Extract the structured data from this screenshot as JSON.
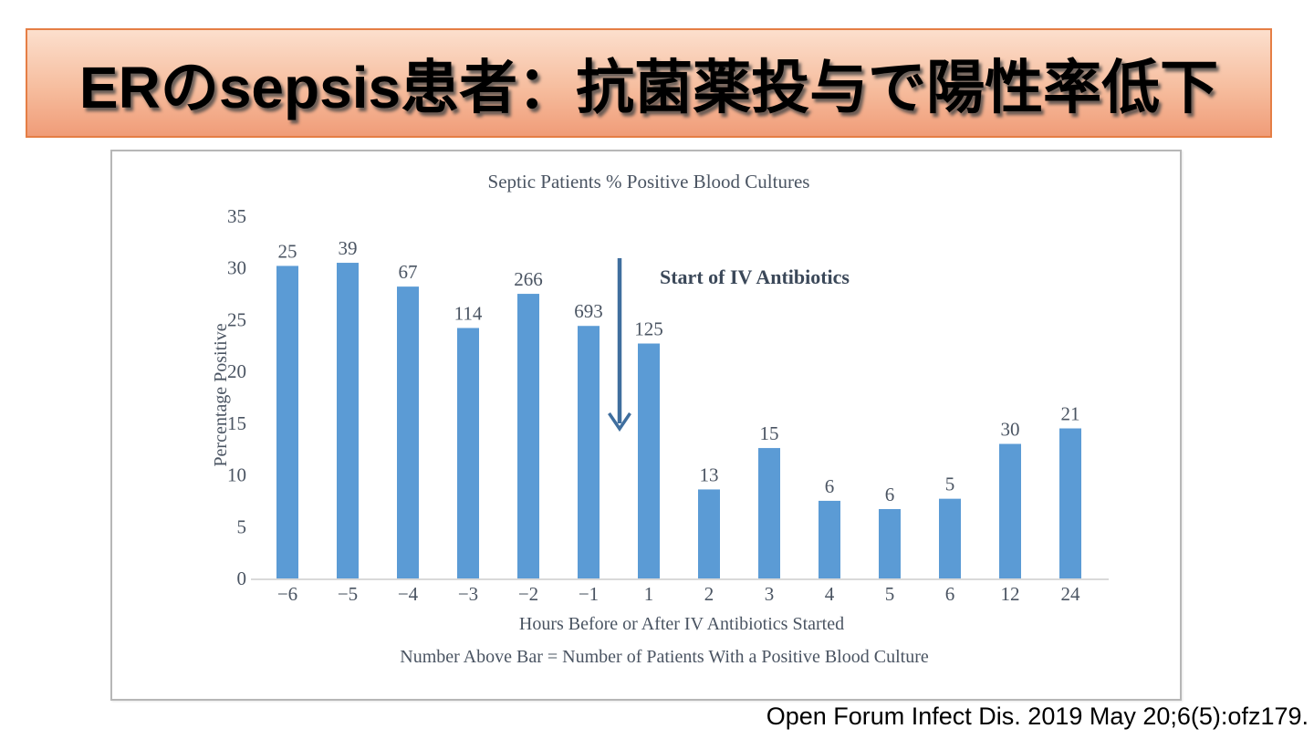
{
  "slide": {
    "title": "ERのsepsis患者：抗菌薬投与で陽性率低下",
    "citation": "Open Forum Infect Dis. 2019 May 20;6(5):ofz179.",
    "banner_colors": {
      "gradient_top": "#fcdfcd",
      "gradient_bottom": "#f09c78",
      "border": "#e57e45",
      "text": "#000000"
    }
  },
  "chart_data": {
    "type": "bar",
    "title": "Septic Patients % Positive Blood Cultures",
    "xlabel": "Hours Before or After IV Antibiotics Started",
    "ylabel": "Percentage Positive",
    "footnote": "Number Above Bar = Number of Patients With a Positive Blood Culture",
    "categories": [
      "−6",
      "−5",
      "−4",
      "−3",
      "−2",
      "−1",
      "1",
      "2",
      "3",
      "4",
      "5",
      "6",
      "12",
      "24"
    ],
    "values": [
      30.2,
      30.5,
      28.2,
      24.2,
      27.5,
      24.4,
      22.7,
      8.6,
      12.6,
      7.5,
      6.7,
      7.7,
      13.0,
      14.5
    ],
    "bar_labels": [
      "25",
      "39",
      "67",
      "114",
      "266",
      "693",
      "125",
      "13",
      "15",
      "6",
      "6",
      "5",
      "30",
      "21"
    ],
    "yticks": [
      0,
      5,
      10,
      15,
      20,
      25,
      30,
      35
    ],
    "ylim": [
      0,
      35
    ],
    "grid": false,
    "legend": null,
    "bar_color": "#5b9bd5",
    "axis_line_color": "#d9d9d9",
    "text_color": "#4a5462",
    "annotation": {
      "text": "Start of IV Antibiotics",
      "arrow_color": "#3f6e9e",
      "arrow_between_categories": [
        "−1",
        "1"
      ]
    }
  }
}
